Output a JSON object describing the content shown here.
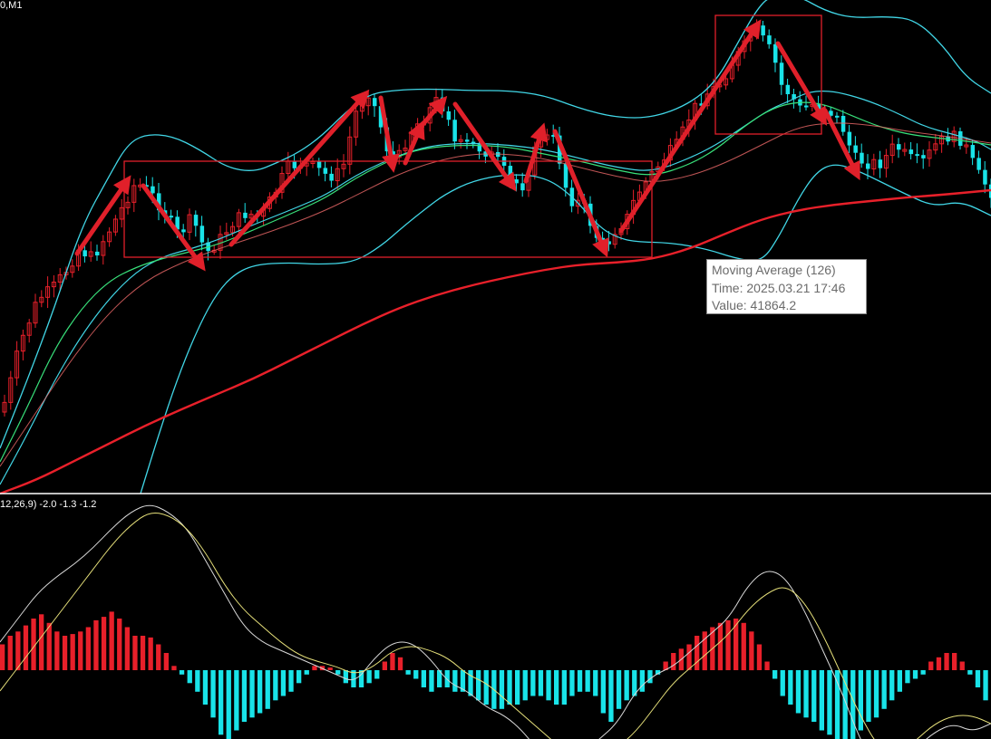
{
  "main_panel": {
    "header": "0,M1",
    "colors": {
      "bull_candle": "#e8202a",
      "bear_candle": "#19e3e8",
      "bollinger": "#41d6e6",
      "ma_fast": "#38e07a",
      "ma_slow": "#f06a6a",
      "ma_126": "#e8202a",
      "annotation": "#e0202a",
      "separator": "#ffffff"
    }
  },
  "tooltip": {
    "name": "Moving Average (126)",
    "time": "Time: 2025.03.21 17:46",
    "value": "Value: 41864.2"
  },
  "macd_panel": {
    "header": "12,26,9) -2.0 -1.3 -1.2",
    "colors": {
      "positive_bar": "#e8202a",
      "negative_bar": "#19e3e8",
      "macd_line": "#d8d8d8",
      "signal_line": "#e6e07a"
    }
  },
  "chart_data": {
    "type": "line",
    "title": "",
    "ma_126_sample": {
      "time": "2025.03.21 17:46",
      "value": 41864.2
    },
    "macd_values": {
      "main": -2.0,
      "signal": -1.3,
      "histogram": -1.2
    },
    "histogram_series": [
      0.3,
      0.4,
      0.45,
      0.52,
      0.6,
      0.65,
      0.55,
      0.45,
      0.4,
      0.42,
      0.45,
      0.5,
      0.58,
      0.62,
      0.68,
      0.6,
      0.5,
      0.4,
      0.4,
      0.38,
      0.3,
      0.2,
      0.05,
      -0.05,
      -0.15,
      -0.25,
      -0.4,
      -0.55,
      -0.75,
      -0.85,
      -0.7,
      -0.6,
      -0.55,
      -0.5,
      -0.45,
      -0.35,
      -0.3,
      -0.25,
      -0.15,
      -0.05,
      0.05,
      0.05,
      0.03,
      -0.05,
      -0.15,
      -0.2,
      -0.2,
      -0.15,
      -0.1,
      0.1,
      0.2,
      0.15,
      -0.05,
      -0.1,
      -0.2,
      -0.25,
      -0.2,
      -0.2,
      -0.25,
      -0.25,
      -0.3,
      -0.35,
      -0.4,
      -0.45,
      -0.45,
      -0.4,
      -0.4,
      -0.35,
      -0.3,
      -0.3,
      -0.35,
      -0.4,
      -0.4,
      -0.3,
      -0.25,
      -0.25,
      -0.3,
      -0.5,
      -0.6,
      -0.45,
      -0.35,
      -0.3,
      -0.25,
      -0.15,
      -0.05,
      0.1,
      0.2,
      0.25,
      0.3,
      0.4,
      0.45,
      0.5,
      0.55,
      0.58,
      0.6,
      0.55,
      0.45,
      0.3,
      0.1,
      -0.1,
      -0.3,
      -0.4,
      -0.5,
      -0.55,
      -0.6,
      -0.7,
      -0.75,
      -0.8,
      -0.85,
      -0.8,
      -0.7,
      -0.6,
      -0.55,
      -0.45,
      -0.35,
      -0.25,
      -0.15,
      -0.1,
      -0.05,
      0.1,
      0.15,
      0.2,
      0.2,
      0.1,
      -0.05,
      -0.2,
      -0.35
    ],
    "macd_line": [
      0.2,
      0.35,
      0.5,
      0.6,
      0.68,
      0.78,
      0.9,
      1.0,
      1.05,
      1.0,
      0.9,
      0.7,
      0.5,
      0.3,
      0.2,
      0.15,
      0.1,
      0.05,
      0.0,
      -0.05,
      0.1,
      0.2,
      0.2,
      0.1,
      -0.05,
      -0.1,
      -0.2,
      -0.25,
      -0.35,
      -0.5,
      -0.55,
      -0.5,
      -0.4,
      -0.3,
      -0.1,
      0.0,
      0.05,
      0.15,
      0.25,
      0.35,
      0.55,
      0.65,
      0.6,
      0.4,
      0.15,
      -0.1,
      -0.4,
      -0.6,
      -0.55,
      -0.45,
      -0.35,
      -0.3,
      -0.35,
      -0.3
    ],
    "signal_line": [
      -0.1,
      0.05,
      0.2,
      0.35,
      0.5,
      0.65,
      0.8,
      0.92,
      1.0,
      0.98,
      0.9,
      0.75,
      0.55,
      0.4,
      0.3,
      0.2,
      0.12,
      0.08,
      0.05,
      0.0,
      0.05,
      0.15,
      0.18,
      0.15,
      0.1,
      0.0,
      -0.05,
      -0.15,
      -0.25,
      -0.35,
      -0.45,
      -0.5,
      -0.5,
      -0.45,
      -0.35,
      -0.2,
      -0.05,
      0.05,
      0.15,
      0.25,
      0.4,
      0.5,
      0.55,
      0.45,
      0.25,
      0.0,
      -0.25,
      -0.45,
      -0.5,
      -0.4,
      -0.3,
      -0.25,
      -0.25,
      -0.3
    ]
  }
}
